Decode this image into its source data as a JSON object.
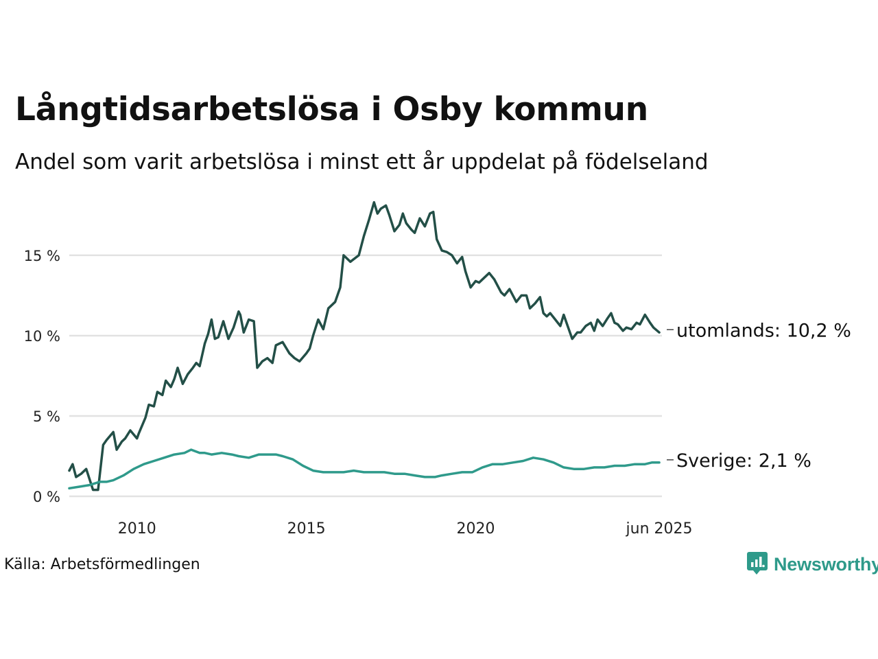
{
  "title": "Långtidsarbetslösa i Osby kommun",
  "subtitle": "Andel som varit arbetslösa i minst ett år uppdelat på födelseland",
  "source": "Källa: Arbetsförmedlingen",
  "brand": {
    "name": "Newsworthy",
    "color": "#2e9a8a",
    "icon": "newsworthy-logo-icon"
  },
  "chart_data": {
    "type": "line",
    "title": "Långtidsarbetslösa i Osby kommun",
    "subtitle": "Andel som varit arbetslösa i minst ett år uppdelat på födelseland",
    "xlabel": "",
    "ylabel": "",
    "xlim": [
      2008.0,
      2025.5
    ],
    "ylim": [
      0,
      18.5
    ],
    "grid": true,
    "yticks": [
      {
        "value": 0,
        "label": "0 %"
      },
      {
        "value": 5,
        "label": "5 %"
      },
      {
        "value": 10,
        "label": "10 %"
      },
      {
        "value": 15,
        "label": "15 %"
      }
    ],
    "xticks": [
      {
        "value": 2010,
        "label": "2010"
      },
      {
        "value": 2015,
        "label": "2015"
      },
      {
        "value": 2020,
        "label": "2020"
      },
      {
        "value": 2025.42,
        "label": "jun 2025"
      }
    ],
    "series": [
      {
        "name": "utomlands",
        "end_label": "utomlands: 10,2 %",
        "color": "#234f47",
        "x": [
          2008.0,
          2008.1,
          2008.2,
          2008.35,
          2008.5,
          2008.7,
          2008.85,
          2009.0,
          2009.1,
          2009.3,
          2009.4,
          2009.55,
          2009.65,
          2009.8,
          2010.0,
          2010.05,
          2010.25,
          2010.35,
          2010.5,
          2010.6,
          2010.75,
          2010.85,
          2011.0,
          2011.1,
          2011.2,
          2011.35,
          2011.5,
          2011.65,
          2011.75,
          2011.85,
          2012.0,
          2012.1,
          2012.2,
          2012.3,
          2012.4,
          2012.55,
          2012.7,
          2012.85,
          2013.0,
          2013.05,
          2013.15,
          2013.3,
          2013.45,
          2013.55,
          2013.7,
          2013.85,
          2014.0,
          2014.1,
          2014.3,
          2014.5,
          2014.65,
          2014.8,
          2015.0,
          2015.1,
          2015.2,
          2015.35,
          2015.5,
          2015.65,
          2015.85,
          2016.0,
          2016.1,
          2016.3,
          2016.55,
          2016.7,
          2016.85,
          2017.0,
          2017.1,
          2017.2,
          2017.35,
          2017.45,
          2017.6,
          2017.75,
          2017.85,
          2017.95,
          2018.1,
          2018.2,
          2018.35,
          2018.5,
          2018.65,
          2018.75,
          2018.85,
          2019.0,
          2019.15,
          2019.3,
          2019.45,
          2019.6,
          2019.7,
          2019.85,
          2020.0,
          2020.1,
          2020.25,
          2020.4,
          2020.55,
          2020.75,
          2020.85,
          2021.0,
          2021.2,
          2021.35,
          2021.5,
          2021.6,
          2021.75,
          2021.9,
          2022.0,
          2022.1,
          2022.2,
          2022.35,
          2022.5,
          2022.6,
          2022.75,
          2022.85,
          2023.0,
          2023.1,
          2023.25,
          2023.4,
          2023.5,
          2023.6,
          2023.75,
          2023.9,
          2024.0,
          2024.1,
          2024.2,
          2024.35,
          2024.45,
          2024.6,
          2024.75,
          2024.85,
          2025.0,
          2025.15,
          2025.25,
          2025.42
        ],
        "y": [
          1.6,
          2.0,
          1.2,
          1.4,
          1.7,
          0.4,
          0.4,
          3.2,
          3.5,
          4.0,
          2.9,
          3.4,
          3.6,
          4.1,
          3.6,
          3.9,
          4.9,
          5.7,
          5.6,
          6.5,
          6.3,
          7.2,
          6.8,
          7.3,
          8.0,
          7.0,
          7.6,
          8.0,
          8.3,
          8.1,
          9.5,
          10.1,
          11.0,
          9.8,
          9.9,
          10.9,
          9.8,
          10.5,
          11.5,
          11.3,
          10.2,
          11.0,
          10.9,
          8.0,
          8.4,
          8.6,
          8.3,
          9.4,
          9.6,
          8.9,
          8.6,
          8.4,
          8.9,
          9.2,
          10.0,
          11.0,
          10.4,
          11.7,
          12.1,
          13.0,
          15.0,
          14.6,
          15.0,
          16.2,
          17.2,
          18.3,
          17.6,
          17.9,
          18.1,
          17.5,
          16.5,
          16.9,
          17.6,
          17.0,
          16.6,
          16.4,
          17.3,
          16.8,
          17.6,
          17.7,
          16.0,
          15.3,
          15.2,
          15.0,
          14.5,
          14.9,
          14.0,
          13.0,
          13.4,
          13.3,
          13.6,
          13.9,
          13.5,
          12.7,
          12.5,
          12.9,
          12.1,
          12.5,
          12.5,
          11.7,
          12.0,
          12.4,
          11.4,
          11.2,
          11.4,
          11.0,
          10.6,
          11.3,
          10.4,
          9.8,
          10.2,
          10.2,
          10.6,
          10.8,
          10.3,
          11.0,
          10.6,
          11.1,
          11.4,
          10.8,
          10.7,
          10.3,
          10.5,
          10.4,
          10.8,
          10.7,
          11.3,
          10.8,
          10.5,
          10.2
        ]
      },
      {
        "name": "Sverige",
        "end_label": "Sverige:  2,1 %",
        "color": "#2f9a8b",
        "x": [
          2008.0,
          2008.3,
          2008.6,
          2008.9,
          2009.1,
          2009.3,
          2009.6,
          2009.9,
          2010.2,
          2010.5,
          2010.8,
          2011.1,
          2011.4,
          2011.6,
          2011.85,
          2012.0,
          2012.2,
          2012.5,
          2012.8,
          2013.0,
          2013.3,
          2013.6,
          2013.9,
          2014.1,
          2014.3,
          2014.6,
          2014.9,
          2015.2,
          2015.5,
          2015.8,
          2016.1,
          2016.4,
          2016.7,
          2017.0,
          2017.3,
          2017.6,
          2017.9,
          2018.2,
          2018.5,
          2018.8,
          2019.0,
          2019.3,
          2019.6,
          2019.9,
          2020.2,
          2020.5,
          2020.8,
          2021.1,
          2021.4,
          2021.7,
          2022.0,
          2022.3,
          2022.6,
          2022.9,
          2023.2,
          2023.5,
          2023.8,
          2024.1,
          2024.4,
          2024.7,
          2025.0,
          2025.2,
          2025.42
        ],
        "y": [
          0.5,
          0.6,
          0.7,
          0.9,
          0.9,
          1.0,
          1.3,
          1.7,
          2.0,
          2.2,
          2.4,
          2.6,
          2.7,
          2.9,
          2.7,
          2.7,
          2.6,
          2.7,
          2.6,
          2.5,
          2.4,
          2.6,
          2.6,
          2.6,
          2.5,
          2.3,
          1.9,
          1.6,
          1.5,
          1.5,
          1.5,
          1.6,
          1.5,
          1.5,
          1.5,
          1.4,
          1.4,
          1.3,
          1.2,
          1.2,
          1.3,
          1.4,
          1.5,
          1.5,
          1.8,
          2.0,
          2.0,
          2.1,
          2.2,
          2.4,
          2.3,
          2.1,
          1.8,
          1.7,
          1.7,
          1.8,
          1.8,
          1.9,
          1.9,
          2.0,
          2.0,
          2.1,
          2.1
        ]
      }
    ]
  }
}
